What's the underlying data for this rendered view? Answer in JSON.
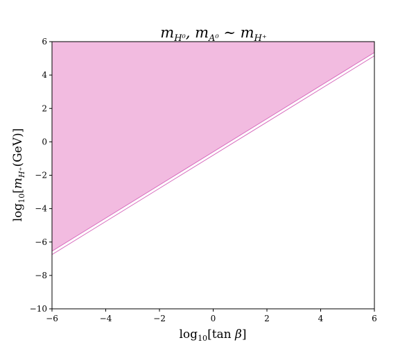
{
  "chart_data": {
    "type": "area",
    "title": "m_{H⁰}, m_{A⁰} ∼ m_{H⁺}",
    "xlabel": "log₁₀[tan β]",
    "ylabel": "log₁₀[m_{H⁺}(GeV)]",
    "xlim": [
      -6,
      6
    ],
    "ylim": [
      -10,
      6
    ],
    "xticks": [
      "−6",
      "−4",
      "−2",
      "0",
      "2",
      "4",
      "6"
    ],
    "yticks": [
      "−10",
      "−8",
      "−6",
      "−4",
      "−2",
      "0",
      "2",
      "4",
      "6"
    ],
    "grid": false,
    "legend": "none",
    "series": [
      {
        "x": [
          -6,
          6
        ],
        "y": [
          -6.55,
          5.35
        ],
        "fill": "above",
        "fill_color": "#f2bbe0",
        "line_color": "#d86fbe"
      },
      {
        "x": [
          -6,
          6
        ],
        "y": [
          -6.75,
          5.15
        ],
        "fill": "none",
        "line_color": "#d86fbe"
      }
    ]
  }
}
